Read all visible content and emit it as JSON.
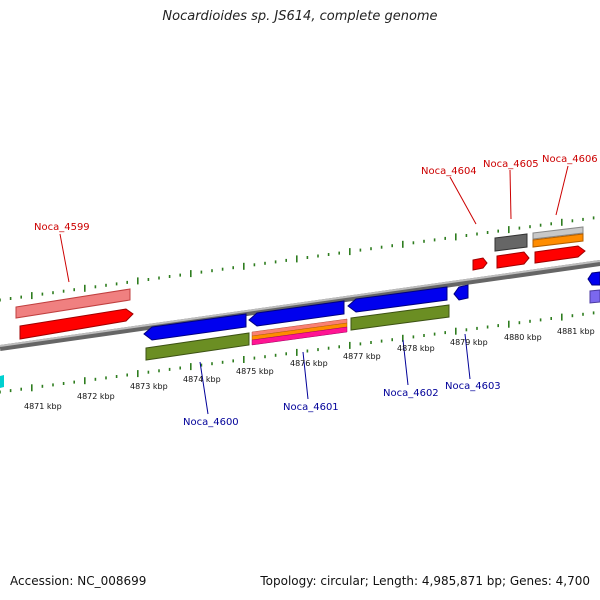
{
  "title": "Nocardioides sp. JS614, complete genome",
  "footer": {
    "accession": "Accession: NC_008699",
    "topology": "Topology: circular; Length: 4,985,871 bp; Genes: 4,700"
  },
  "colors": {
    "forward_label": "#cc0000",
    "reverse_label": "#000099",
    "tick": "#2e7d1f",
    "backbone": "#888888",
    "cds_forward": "#ff0000",
    "cds_reverse": "#0000ee",
    "gene_forward": "#f08080",
    "gene_reverse": "#6b8e23"
  },
  "scale_labels": [
    "4871 kbp",
    "4872 kbp",
    "4873 kbp",
    "4874 kbp",
    "4875 kbp",
    "4876 kbp",
    "4877 kbp",
    "4878 kbp",
    "4879 kbp",
    "4880 kbp",
    "4881 kbp"
  ],
  "forward_genes": [
    "Noca_4599",
    "Noca_4604",
    "Noca_4605",
    "Noca_4606"
  ],
  "reverse_genes": [
    "Noca_4600",
    "Noca_4601",
    "Noca_4602",
    "Noca_4603"
  ]
}
